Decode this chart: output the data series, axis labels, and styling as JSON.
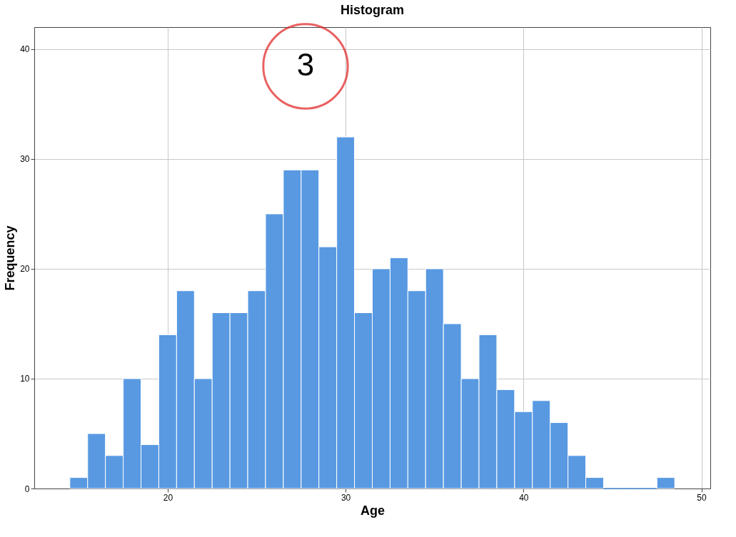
{
  "chart_data": {
    "type": "histogram",
    "title": "Histogram",
    "xlabel": "Age",
    "ylabel": "Frequency",
    "bins": [
      14.5,
      15.5,
      16.5,
      17.5,
      18.5,
      19.5,
      20.5,
      21.5,
      22.5,
      23.5,
      24.5,
      25.5,
      26.5,
      27.5,
      28.5,
      29.5,
      30.5,
      31.5,
      32.5,
      33.5,
      34.5,
      35.5,
      36.5,
      37.5,
      38.5,
      39.5,
      40.5,
      41.5,
      42.5,
      43.5,
      44.5,
      45.5,
      46.5,
      47.5,
      48.5
    ],
    "values": [
      1,
      5,
      3,
      10,
      4,
      14,
      18,
      10,
      16,
      16,
      18,
      25,
      29,
      29,
      22,
      32,
      16,
      20,
      21,
      18,
      20,
      15,
      10,
      14,
      9,
      7,
      8,
      6,
      3,
      1,
      0,
      0,
      0,
      1
    ],
    "color": "#5899e2",
    "xlim": [
      12.5,
      50.5
    ],
    "ylim": [
      0,
      42
    ],
    "xticks": [
      20,
      30,
      40,
      50
    ],
    "yticks": [
      0,
      10,
      20,
      30,
      40
    ],
    "grid": true,
    "annotations": [
      "3"
    ]
  }
}
